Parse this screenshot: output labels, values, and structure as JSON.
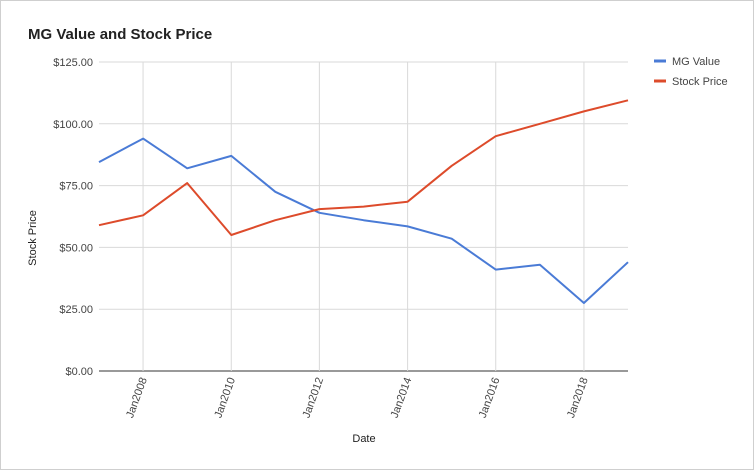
{
  "chart_data": {
    "type": "line",
    "title": "MG Value and Stock Price",
    "xlabel": "Date",
    "ylabel": "Stock Price",
    "x": [
      "2007-01-01",
      "2008-01-01",
      "2009-01-01",
      "2010-01-01",
      "2011-01-01",
      "2012-01-01",
      "2013-01-01",
      "2014-01-01",
      "2015-01-01",
      "2016-01-01",
      "2017-01-01",
      "2018-01-01",
      "2019-01-01"
    ],
    "x_ticks": [
      "Jan2008",
      "Jan2010",
      "Jan2012",
      "Jan2014",
      "Jan2016",
      "Jan2018"
    ],
    "y_ticks": [
      "$0.00",
      "$25.00",
      "$50.00",
      "$75.00",
      "$100.00",
      "$125.00"
    ],
    "ylim": [
      0,
      125
    ],
    "grid": true,
    "legend_position": "right",
    "series": [
      {
        "name": "MG Value",
        "color": "#4a7bd6",
        "values": [
          84.5,
          94,
          82,
          87,
          72.5,
          64,
          61,
          58.5,
          53.5,
          41,
          43,
          27.5,
          44
        ]
      },
      {
        "name": "Stock Price",
        "color": "#dd4b2b",
        "values": [
          59,
          63,
          76,
          55,
          61,
          65.5,
          66.5,
          68.5,
          83,
          95,
          100,
          105,
          109.5
        ]
      }
    ]
  }
}
